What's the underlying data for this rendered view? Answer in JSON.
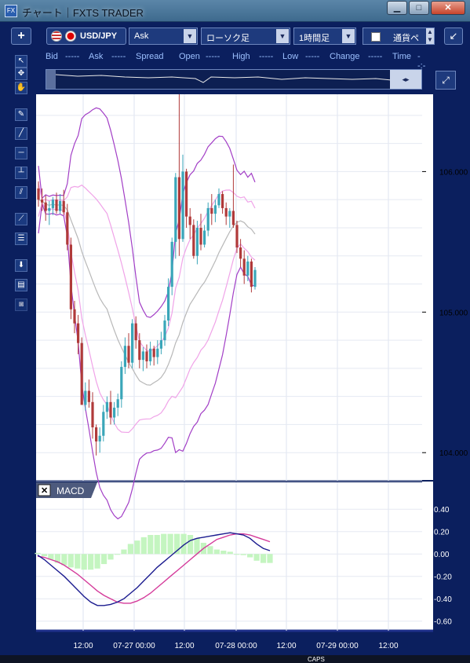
{
  "window": {
    "title": "チャート｜FXTS TRADER",
    "app_icon": "FX",
    "min_label": "▁",
    "max_label": "□",
    "close_label": "✕"
  },
  "toolbar": {
    "plus_label": "+",
    "symbol": "USD/JPY",
    "price_type": "Ask",
    "chart_type": "ローソク足",
    "timeframe": "1時間足",
    "pair_label": "通貨ペ",
    "collapse_icon": "↙"
  },
  "quote_header": {
    "bid_label": "Bid",
    "bid_value": "-----",
    "ask_label": "Ask",
    "ask_value": "-----",
    "spread_label": "Spread",
    "open_label": "Open",
    "open_value": "-----",
    "high_label": "High",
    "high_value": "-----",
    "low_label": "Low",
    "low_value": "-----",
    "change_label": "Change",
    "change_value": "-----",
    "time_label": "Time",
    "time_value": "--:--"
  },
  "tools": [
    "pointer-icon",
    "crosshair-icon",
    "hand-icon",
    "pen-icon",
    "trendline-icon",
    "horizontal-line-icon",
    "vertical-line-icon",
    "parallel-channel-icon",
    "fan-icon",
    "fibonacci-icon",
    "download-icon",
    "list-icon",
    "camera-icon"
  ],
  "macd_panel": {
    "label": "MACD",
    "close_label": "✕"
  },
  "colors": {
    "background": "#ffffff",
    "frame": "#0b1f5e",
    "up": "#3aa6b9",
    "down": "#b03a3a",
    "band_outer": "#a23ec6",
    "band_inner": "#f0a3e8",
    "ma": "#b8b8b8",
    "macd": "#1b1b8f",
    "signal": "#d43a9a",
    "histogram": "#c4f5c0"
  },
  "chart_data": [
    {
      "type": "candlestick",
      "symbol": "USD/JPY",
      "y_ticks": [
        "106.000",
        "105.000",
        "104.000"
      ],
      "ylim": [
        103.8,
        106.55
      ],
      "series": [
        {
          "name": "",
          "values": [
            [
              105.88,
              105.93,
              105.75,
              105.8
            ],
            [
              105.8,
              105.88,
              105.72,
              105.78
            ],
            [
              105.78,
              105.83,
              105.65,
              105.72
            ],
            [
              105.72,
              105.79,
              105.62,
              105.74
            ],
            [
              105.74,
              105.82,
              105.69,
              105.8
            ],
            [
              105.8,
              105.85,
              105.7,
              105.72
            ],
            [
              105.72,
              105.84,
              105.7,
              105.79
            ],
            [
              105.79,
              105.87,
              105.69,
              105.71
            ],
            [
              105.71,
              105.77,
              105.44,
              105.48
            ],
            [
              105.48,
              105.53,
              104.95,
              105.02
            ],
            [
              105.02,
              105.08,
              104.85,
              104.92
            ],
            [
              104.92,
              104.98,
              104.7,
              104.78
            ],
            [
              104.78,
              104.82,
              104.34,
              104.34
            ],
            [
              104.34,
              104.5,
              104.3,
              104.44
            ],
            [
              104.44,
              104.52,
              104.32,
              104.36
            ],
            [
              104.36,
              104.43,
              104.1,
              104.18
            ],
            [
              104.18,
              104.2,
              103.98,
              104.08
            ],
            [
              104.08,
              104.18,
              104.0,
              104.12
            ],
            [
              104.12,
              104.34,
              104.08,
              104.29
            ],
            [
              104.29,
              104.4,
              104.24,
              104.36
            ],
            [
              104.36,
              104.44,
              104.2,
              104.25
            ],
            [
              104.25,
              104.36,
              104.2,
              104.32
            ],
            [
              104.32,
              104.42,
              104.26,
              104.38
            ],
            [
              104.38,
              104.65,
              104.32,
              104.61
            ],
            [
              104.61,
              104.82,
              104.56,
              104.76
            ],
            [
              104.76,
              104.85,
              104.6,
              104.64
            ],
            [
              104.64,
              104.95,
              104.6,
              104.92
            ],
            [
              104.92,
              104.97,
              104.74,
              104.8
            ],
            [
              104.8,
              104.85,
              104.6,
              104.66
            ],
            [
              104.66,
              104.75,
              104.58,
              104.72
            ],
            [
              104.72,
              104.77,
              104.6,
              104.65
            ],
            [
              104.65,
              104.79,
              104.62,
              104.74
            ],
            [
              104.74,
              104.76,
              104.62,
              104.68
            ],
            [
              104.68,
              104.8,
              104.63,
              104.74
            ],
            [
              104.74,
              104.86,
              104.7,
              104.8
            ],
            [
              104.8,
              104.98,
              104.76,
              104.94
            ],
            [
              104.94,
              105.24,
              104.9,
              105.18
            ],
            [
              105.18,
              105.53,
              105.12,
              105.5
            ],
            [
              105.5,
              105.99,
              105.38,
              105.96
            ],
            [
              105.96,
              106.55,
              105.4,
              105.52
            ],
            [
              105.52,
              106.12,
              105.5,
              106.0
            ],
            [
              106.0,
              106.02,
              105.6,
              105.68
            ],
            [
              105.68,
              105.74,
              105.52,
              105.62
            ],
            [
              105.62,
              105.66,
              105.38,
              105.4
            ],
            [
              105.4,
              105.65,
              105.34,
              105.6
            ],
            [
              105.6,
              105.7,
              105.44,
              105.48
            ],
            [
              105.48,
              105.62,
              105.46,
              105.58
            ],
            [
              105.58,
              105.78,
              105.54,
              105.74
            ],
            [
              105.74,
              105.84,
              105.62,
              105.7
            ],
            [
              105.7,
              105.8,
              105.64,
              105.76
            ],
            [
              105.76,
              105.88,
              105.74,
              105.84
            ],
            [
              105.84,
              105.86,
              105.7,
              105.74
            ],
            [
              105.74,
              105.78,
              105.62,
              105.68
            ],
            [
              105.68,
              105.74,
              105.6,
              105.72
            ],
            [
              105.72,
              106.05,
              105.6,
              105.62
            ],
            [
              105.62,
              105.65,
              105.42,
              105.46
            ],
            [
              105.46,
              105.52,
              105.32,
              105.38
            ],
            [
              105.38,
              105.44,
              105.2,
              105.26
            ],
            [
              105.26,
              105.4,
              105.22,
              105.36
            ],
            [
              105.36,
              105.38,
              105.14,
              105.18
            ],
            [
              105.18,
              105.32,
              105.16,
              105.3
            ]
          ]
        }
      ]
    },
    {
      "type": "line",
      "title": "MACD",
      "y_ticks": [
        "0.40",
        "0.20",
        "0.00",
        "-0.20",
        "-0.40",
        "-0.60"
      ],
      "ylim": [
        -0.63,
        0.5
      ],
      "series": [
        {
          "name": "",
          "values": [
            -0.01,
            -0.05,
            -0.1,
            -0.15,
            -0.2,
            -0.26,
            -0.32,
            -0.38,
            -0.43,
            -0.46,
            -0.46,
            -0.45,
            -0.43,
            -0.4,
            -0.35,
            -0.3,
            -0.24,
            -0.18,
            -0.12,
            -0.07,
            -0.02,
            0.03,
            0.08,
            0.12,
            0.14,
            0.15,
            0.16,
            0.17,
            0.18,
            0.19,
            0.18,
            0.17,
            0.14,
            0.09,
            0.05,
            0.03
          ]
        },
        {
          "name": "",
          "values": [
            -0.02,
            -0.03,
            -0.05,
            -0.07,
            -0.1,
            -0.14,
            -0.18,
            -0.23,
            -0.28,
            -0.33,
            -0.37,
            -0.4,
            -0.43,
            -0.44,
            -0.44,
            -0.42,
            -0.39,
            -0.35,
            -0.3,
            -0.25,
            -0.2,
            -0.15,
            -0.1,
            -0.05,
            0.0,
            0.05,
            0.09,
            0.13,
            0.15,
            0.17,
            0.18,
            0.18,
            0.17,
            0.15,
            0.13,
            0.11
          ]
        },
        {
          "name": "",
          "values": [
            0.01,
            -0.02,
            -0.05,
            -0.08,
            -0.1,
            -0.12,
            -0.13,
            -0.14,
            -0.14,
            -0.13,
            -0.09,
            -0.05,
            0.0,
            0.04,
            0.09,
            0.12,
            0.15,
            0.17,
            0.17,
            0.18,
            0.18,
            0.18,
            0.18,
            0.17,
            0.14,
            0.1,
            0.07,
            0.04,
            0.03,
            0.02,
            0.0,
            -0.01,
            -0.03,
            -0.06,
            -0.08,
            -0.08
          ]
        }
      ]
    }
  ],
  "x_axis": {
    "ticks": [
      "12:00",
      "07-27 00:00",
      "12:00",
      "07-28 00:00",
      "12:00",
      "07-29 00:00",
      "12:00"
    ]
  },
  "taskbar": {
    "caps": "CAPS"
  }
}
